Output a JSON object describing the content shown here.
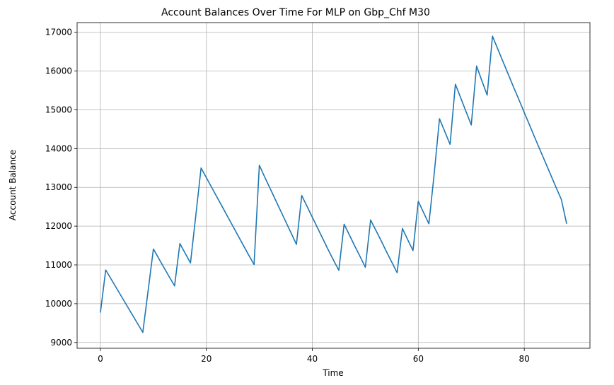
{
  "chart_data": {
    "type": "line",
    "title": "Account Balances Over Time For MLP on Gbp_Chf M30",
    "xlabel": "Time",
    "ylabel": "Account Balance",
    "xlim": [
      -4.4,
      92.4
    ],
    "ylim": [
      8850,
      17250
    ],
    "xticks": [
      0,
      20,
      40,
      60,
      80
    ],
    "yticks": [
      9000,
      10000,
      11000,
      12000,
      13000,
      14000,
      15000,
      16000,
      17000
    ],
    "grid": true,
    "series": [
      {
        "color": "#1f77b4",
        "x": [
          0,
          1,
          2,
          3,
          4,
          5,
          6,
          7,
          8,
          9,
          10,
          11,
          12,
          13,
          14,
          15,
          16,
          17,
          18,
          19,
          20,
          21,
          22,
          23,
          24,
          25,
          26,
          27,
          28,
          29,
          30,
          31,
          32,
          33,
          34,
          35,
          36,
          37,
          38,
          39,
          40,
          41,
          42,
          43,
          44,
          45,
          46,
          47,
          48,
          49,
          50,
          51,
          52,
          53,
          54,
          55,
          56,
          57,
          58,
          59,
          60,
          61,
          62,
          63,
          64,
          65,
          66,
          67,
          68,
          69,
          70,
          71,
          72,
          73,
          74,
          75,
          76,
          77,
          78,
          79,
          80,
          81,
          82,
          83,
          84,
          85,
          86,
          87,
          88
        ],
        "y": [
          9770,
          10870,
          10640,
          10410,
          10180,
          9950,
          9720,
          9490,
          9260,
          10330,
          11410,
          11170,
          10930,
          10690,
          10460,
          11550,
          11300,
          11050,
          12270,
          13500,
          13250,
          13000,
          12750,
          12500,
          12250,
          12000,
          11750,
          11500,
          11250,
          11010,
          13570,
          13270,
          12980,
          12690,
          12400,
          12110,
          11820,
          11530,
          12790,
          12510,
          12230,
          11950,
          11670,
          11390,
          11120,
          10860,
          12050,
          11770,
          11490,
          11220,
          10940,
          12160,
          11890,
          11620,
          11340,
          11070,
          10800,
          11940,
          11650,
          11370,
          12640,
          12350,
          12060,
          13350,
          14770,
          14440,
          14110,
          15660,
          15310,
          14960,
          14610,
          16130,
          15750,
          15380,
          16900,
          16570,
          16240,
          15910,
          15580,
          15260,
          14930,
          14610,
          14280,
          13960,
          13640,
          13320,
          13000,
          12690,
          12060
        ]
      }
    ]
  }
}
